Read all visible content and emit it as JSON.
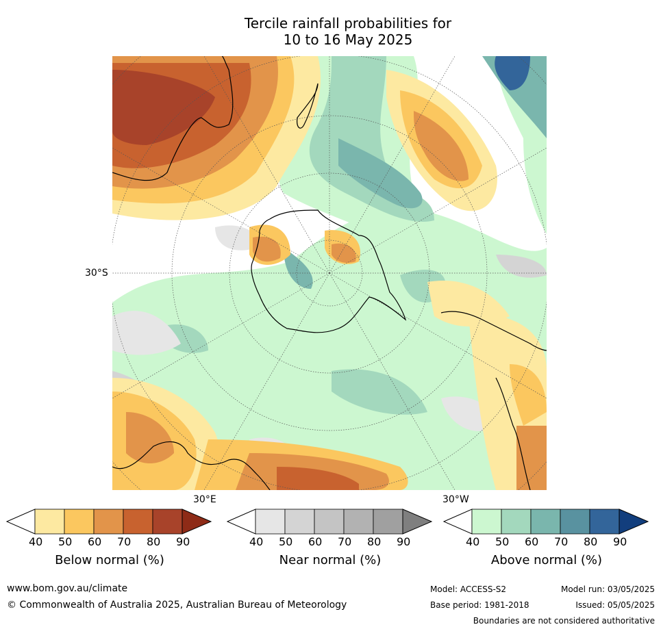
{
  "title": {
    "line1": "Tercile rainfall probabilities for",
    "line2": "10 to 16 May 2025"
  },
  "map": {
    "labels": {
      "lat_30s": "30°S",
      "lon_30e": "30°E",
      "lon_30w": "30°W"
    },
    "palette": {
      "ocean_bg": "#ffffff",
      "below": [
        "#fde9a1",
        "#fbc75f",
        "#e2944a",
        "#c8622f",
        "#a8432a",
        "#8e2b17"
      ],
      "near": [
        "#e6e6e6",
        "#d4d4d4",
        "#c4c4c4",
        "#b2b2b2",
        "#a0a0a0",
        "#7f7f7f"
      ],
      "above": [
        "#ccf7d0",
        "#a3d8bd",
        "#7ab6ad",
        "#5992a0",
        "#33659a",
        "#123e7d"
      ]
    }
  },
  "colorbars": [
    {
      "id": "below",
      "title": "Below normal (%)",
      "ticks": [
        "40",
        "50",
        "60",
        "70",
        "80",
        "90"
      ]
    },
    {
      "id": "near",
      "title": "Near normal (%)",
      "ticks": [
        "40",
        "50",
        "60",
        "70",
        "80",
        "90"
      ]
    },
    {
      "id": "above",
      "title": "Above normal (%)",
      "ticks": [
        "40",
        "50",
        "60",
        "70",
        "80",
        "90"
      ]
    }
  ],
  "footer": {
    "website": "www.bom.gov.au/climate",
    "copyright": "© Commonwealth of Australia 2025, Australian Bureau of Meteorology",
    "model": "Model: ACCESS-S2",
    "base_period": "Base period: 1981-2018",
    "model_run": "Model run: 03/05/2025",
    "issued": "Issued: 05/05/2025",
    "disclaimer": "Boundaries are not considered authoritative"
  }
}
